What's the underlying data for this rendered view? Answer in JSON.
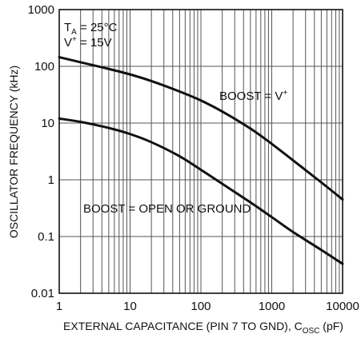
{
  "chart_data": {
    "type": "line",
    "title": "",
    "xlabel_main": "EXTERNAL CAPACITANCE (PIN 7 TO GND), C",
    "xlabel_sub": "OSC",
    "xlabel_unit": " (pF)",
    "ylabel": "OSCILLATOR FREQUENCY (kHz)",
    "xscale": "log",
    "yscale": "log",
    "xlim": [
      1,
      10000
    ],
    "ylim": [
      0.01,
      1000
    ],
    "grid": true,
    "x_ticks": [
      "1",
      "10",
      "100",
      "1000",
      "10000"
    ],
    "y_ticks": [
      "1000",
      "100",
      "10",
      "1",
      "0.1",
      "0.01"
    ],
    "conditions": {
      "line1_main": "T",
      "line1_sub": "A",
      "line1_rest": " = 25°C",
      "line2_main": "V",
      "line2_sup": "+",
      "line2_rest": " = 15V"
    },
    "series": [
      {
        "name": "BOOST = V",
        "name_sup": "+",
        "x": [
          1,
          2,
          5,
          10,
          20,
          50,
          100,
          200,
          500,
          1000,
          2000,
          5000,
          10000
        ],
        "y": [
          145,
          118,
          90,
          72,
          55,
          36,
          25,
          16,
          8,
          4.3,
          2.2,
          0.9,
          0.45
        ]
      },
      {
        "name": "BOOST = OPEN OR GROUND",
        "x": [
          1,
          2,
          5,
          10,
          20,
          50,
          100,
          200,
          500,
          1000,
          2000,
          5000,
          10000
        ],
        "y": [
          12,
          10.5,
          8.2,
          6.4,
          4.6,
          2.6,
          1.5,
          0.85,
          0.4,
          0.22,
          0.12,
          0.058,
          0.033
        ]
      }
    ]
  }
}
